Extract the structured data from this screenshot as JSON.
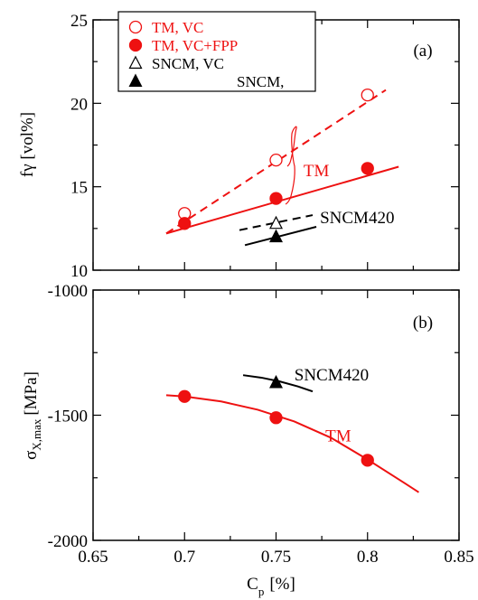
{
  "colors": {
    "tm": "#ee1111",
    "sncm": "#000000",
    "axis": "#000000"
  },
  "x_axis": {
    "label_main": "C",
    "label_sub": "p",
    "label_unit": "[%]",
    "range": [
      0.65,
      0.85
    ],
    "ticks": [
      0.65,
      0.7,
      0.75,
      0.8,
      0.85
    ],
    "tick_labels": [
      "0.65",
      "0.7",
      "0.75",
      "0.8",
      "0.85"
    ]
  },
  "chart_data": [
    {
      "type": "scatter",
      "panel": "(a)",
      "ylabel": "fγ [vol%]",
      "ylim": [
        10,
        25
      ],
      "yticks": [
        10,
        15,
        20,
        25
      ],
      "ytick_labels": [
        "10",
        "15",
        "20",
        "25"
      ],
      "legend_placement": "top-left",
      "legend": [
        {
          "text": "TM, VC",
          "marker": "circle-open",
          "color": "#ee1111"
        },
        {
          "text": "TM, VC+FPP",
          "marker": "circle-filled",
          "color": "#ee1111"
        },
        {
          "text": "SNCM, VC",
          "marker": "triangle-open",
          "color": "#000000"
        },
        {
          "text": "SNCM,",
          "marker": "triangle-filled",
          "color": "#000000"
        }
      ],
      "series": [
        {
          "name": "TM, VC",
          "x": [
            0.7,
            0.75,
            0.8
          ],
          "y": [
            13.4,
            16.6,
            20.5
          ]
        },
        {
          "name": "TM, VC+FPP",
          "x": [
            0.7,
            0.75,
            0.8
          ],
          "y": [
            12.8,
            14.3,
            16.1
          ]
        },
        {
          "name": "SNCM, VC",
          "x": [
            0.75
          ],
          "y": [
            12.8
          ]
        },
        {
          "name": "SNCM,",
          "x": [
            0.75
          ],
          "y": [
            12.0
          ]
        }
      ],
      "fit_lines": [
        {
          "series": "TM, VC",
          "style": "dashed",
          "color": "#ee1111",
          "x": [
            0.69,
            0.81
          ],
          "y": [
            12.2,
            20.8
          ]
        },
        {
          "series": "TM, VC+FPP",
          "style": "solid",
          "color": "#ee1111",
          "x": [
            0.69,
            0.817
          ],
          "y": [
            12.2,
            16.2
          ]
        },
        {
          "series": "SNCM, VC",
          "style": "dashed",
          "color": "#000000",
          "x": [
            0.73,
            0.77
          ],
          "y": [
            12.4,
            13.3
          ]
        },
        {
          "series": "SNCM,",
          "style": "solid",
          "color": "#000000",
          "x": [
            0.733,
            0.772
          ],
          "y": [
            11.5,
            12.6
          ]
        }
      ],
      "annotations": [
        {
          "text": "TM",
          "color": "#ee1111",
          "x": 0.765,
          "y": 16.0
        },
        {
          "text": "SNCM420",
          "color": "#000000",
          "x": 0.774,
          "y": 13.2
        }
      ]
    },
    {
      "type": "scatter",
      "panel": "(b)",
      "ylabel": "σ",
      "ylabel_sub": "X,max",
      "ylabel_unit": "[MPa]",
      "ylim": [
        -2000,
        -1000
      ],
      "yticks": [
        -1000,
        -1500,
        -2000
      ],
      "ytick_labels": [
        "-1000",
        "-1500",
        "-2000"
      ],
      "series": [
        {
          "name": "TM",
          "x": [
            0.7,
            0.75,
            0.8
          ],
          "y": [
            -1425,
            -1510,
            -1680
          ]
        },
        {
          "name": "SNCM420",
          "x": [
            0.75
          ],
          "y": [
            -1370
          ]
        }
      ],
      "fit_lines": [
        {
          "series": "TM",
          "style": "solid",
          "color": "#ee1111",
          "x": [
            0.69,
            0.7,
            0.72,
            0.74,
            0.76,
            0.78,
            0.8,
            0.82,
            0.828
          ],
          "y": [
            -1420,
            -1425,
            -1445,
            -1478,
            -1525,
            -1590,
            -1677,
            -1770,
            -1808
          ]
        },
        {
          "series": "SNCM420",
          "style": "solid",
          "color": "#000000",
          "x": [
            0.732,
            0.742,
            0.752,
            0.762,
            0.77
          ],
          "y": [
            -1340,
            -1350,
            -1365,
            -1385,
            -1405
          ]
        }
      ],
      "annotations": [
        {
          "text": "TM",
          "color": "#ee1111",
          "x": 0.777,
          "y": -1580
        },
        {
          "text": "SNCM420",
          "color": "#000000",
          "x": 0.76,
          "y": -1335
        }
      ]
    }
  ]
}
